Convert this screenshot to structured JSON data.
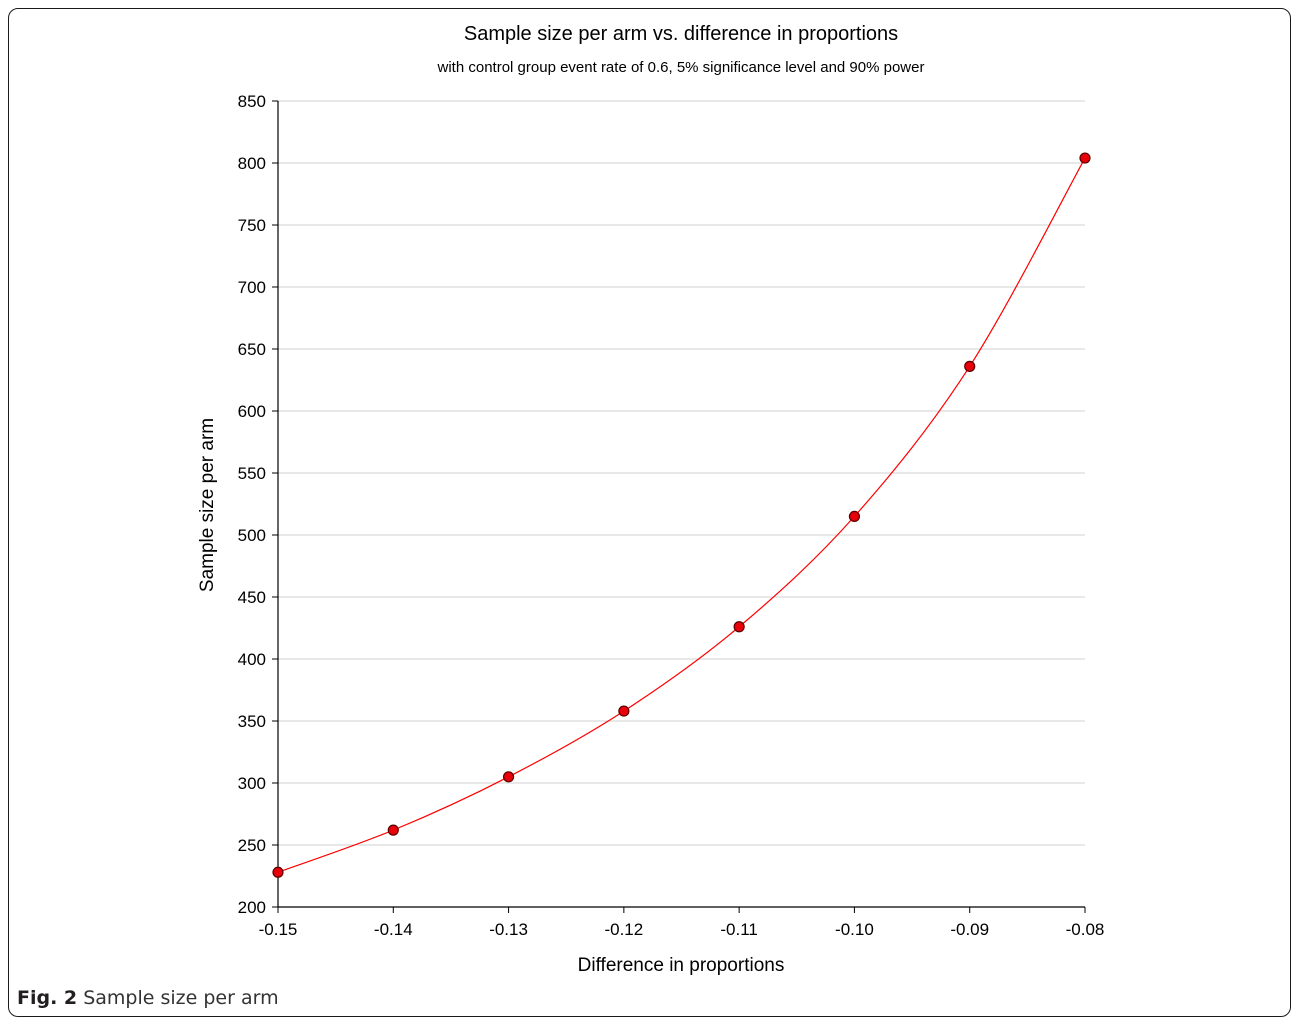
{
  "figure": {
    "caption_label": "Fig. 2",
    "caption_text": "Sample size per arm"
  },
  "chart_data": {
    "type": "line",
    "title": "Sample size per arm vs. difference in proportions",
    "subtitle": "with control group event rate of 0.6, 5% significance level and 90% power",
    "xlabel": "Difference in proportions",
    "ylabel": "Sample size per arm",
    "x": [
      -0.15,
      -0.14,
      -0.13,
      -0.12,
      -0.11,
      -0.1,
      -0.09,
      -0.08
    ],
    "series": [
      {
        "values": [
          228,
          262,
          305,
          358,
          426,
          515,
          636,
          804
        ]
      }
    ],
    "xlim": [
      -0.15,
      -0.08
    ],
    "ylim": [
      200,
      850
    ],
    "x_ticks": [
      "-0.15",
      "-0.14",
      "-0.13",
      "-0.12",
      "-0.11",
      "-0.10",
      "-0.09",
      "-0.08"
    ],
    "y_ticks": [
      "200",
      "250",
      "300",
      "350",
      "400",
      "450",
      "500",
      "550",
      "600",
      "650",
      "700",
      "750",
      "800",
      "850"
    ],
    "grid": "horizontal",
    "colors": {
      "line": "#ff0000",
      "marker_fill": "#e8000b",
      "marker_edge": "#5a0000",
      "grid": "#d0d0d0",
      "axis": "#000000"
    }
  }
}
